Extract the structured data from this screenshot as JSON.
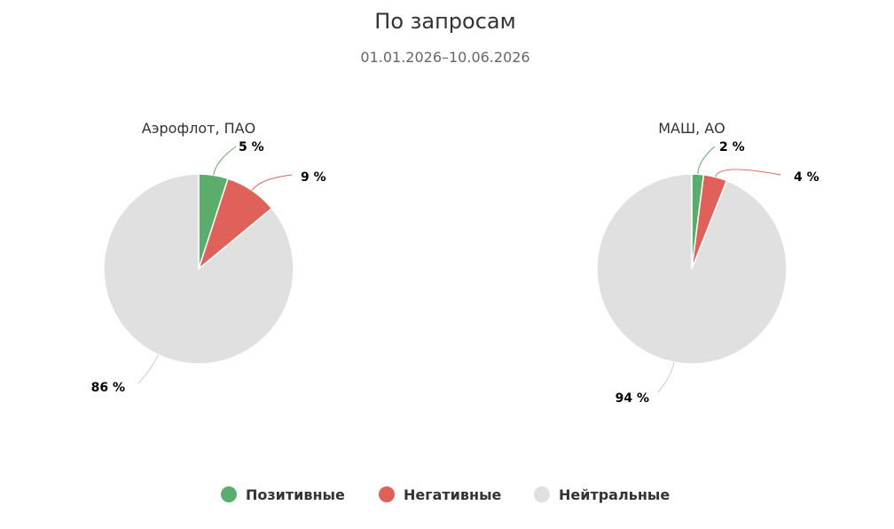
{
  "chart_data": {
    "type": "pie",
    "title": "По запросам",
    "subtitle": "01.01.2026–10.06.2026",
    "categories": [
      "Позитивные",
      "Негативные",
      "Нейтральные"
    ],
    "colors": [
      "#5aad6a",
      "#e0605a",
      "#e0e0e0"
    ],
    "unit": "%",
    "legend_position": "bottom",
    "series": [
      {
        "name": "Аэрофлот, ПАО",
        "values": [
          5,
          9,
          86
        ]
      },
      {
        "name": "МАШ, АО",
        "values": [
          2,
          4,
          94
        ]
      }
    ]
  }
}
